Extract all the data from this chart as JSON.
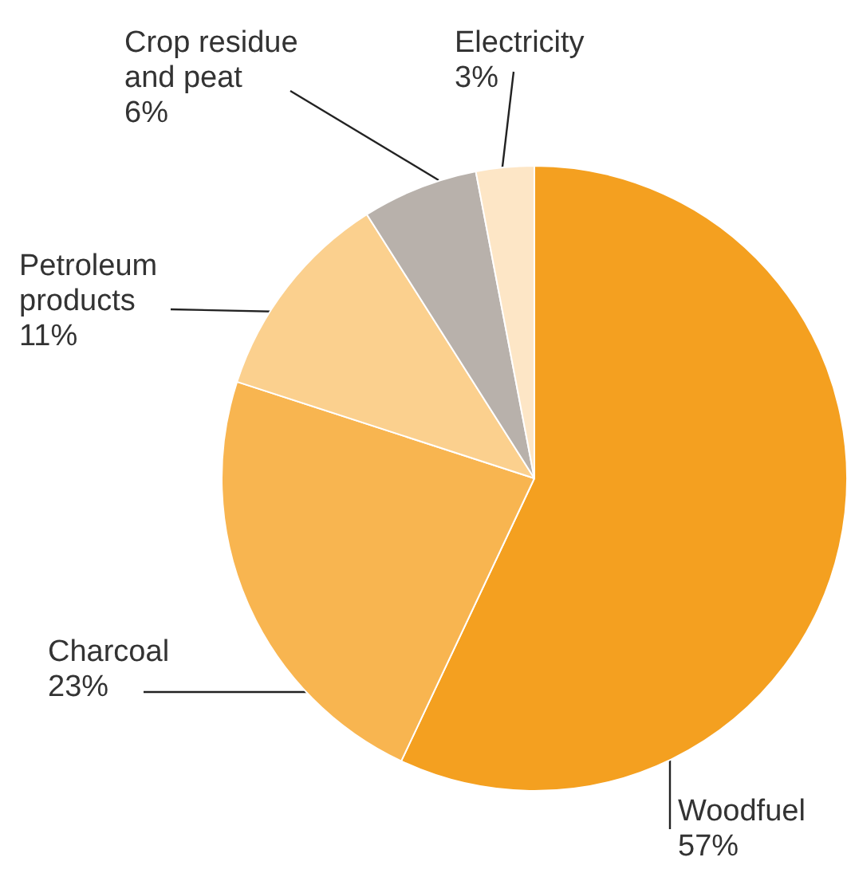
{
  "chart_data": {
    "type": "pie",
    "categories": [
      "Woodfuel",
      "Charcoal",
      "Petroleum products",
      "Crop residue and peat",
      "Electricity"
    ],
    "values": [
      57,
      23,
      11,
      6,
      3
    ],
    "value_labels": [
      "57%",
      "23%",
      "11%",
      "6%",
      "3%"
    ],
    "colors": [
      "#f4a020",
      "#f8b550",
      "#fbd08e",
      "#b8b1ab",
      "#fde6c6"
    ],
    "legend": false
  }
}
